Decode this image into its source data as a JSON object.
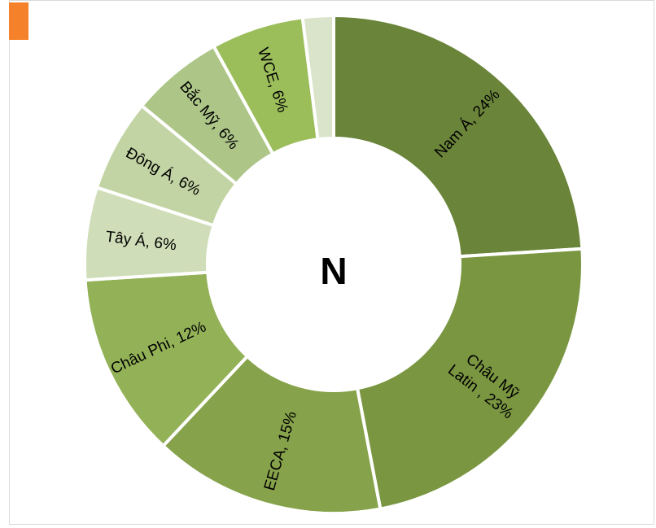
{
  "chart_data": {
    "type": "pie",
    "variant": "donut",
    "title": "",
    "center_label": "N",
    "series": [
      {
        "name": "Nam Á",
        "label": "Nam Á, 24%",
        "value": 24,
        "color": "#6a843a"
      },
      {
        "name": "Châu Mỹ Latin",
        "label": "Châu Mỹ Latin , 23%",
        "label_lines": [
          "Châu Mỹ",
          "Latin , 23%"
        ],
        "value": 23,
        "color": "#7a9641"
      },
      {
        "name": "EECA",
        "label": "EECA, 15%",
        "value": 15,
        "color": "#86a24a"
      },
      {
        "name": "Châu Phi",
        "label": "Châu Phi, 12%",
        "value": 12,
        "color": "#93b257"
      },
      {
        "name": "Tây Á",
        "label": "Tây Á, 6%",
        "value": 6,
        "color": "#cfddb8"
      },
      {
        "name": "Đông Á",
        "label": "Đông Á, 6%",
        "value": 6,
        "color": "#c2d4a3"
      },
      {
        "name": "Bắc Mỹ",
        "label": "Bắc Mỹ, 6%",
        "value": 6,
        "color": "#adc688"
      },
      {
        "name": "WCE",
        "label": "WCE, 6%",
        "value": 6,
        "color": "#9bbe5b"
      },
      {
        "name": "",
        "label": "",
        "value": 2,
        "color": "#d9e4ca"
      }
    ],
    "legend": "none",
    "accent_color": "#f5822a"
  }
}
